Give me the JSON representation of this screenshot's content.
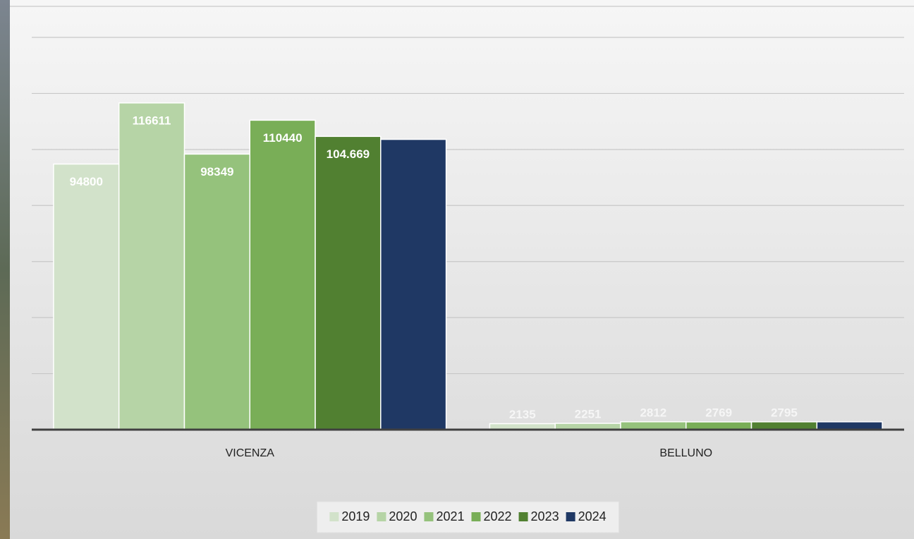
{
  "chart_data": {
    "type": "bar",
    "categories": [
      "VICENZA",
      "BELLUNO"
    ],
    "series": [
      {
        "name": "2019",
        "color": "#d2e2ca",
        "values": [
          94800,
          2135
        ]
      },
      {
        "name": "2020",
        "color": "#b6d4a6",
        "values": [
          116611,
          2251
        ]
      },
      {
        "name": "2021",
        "color": "#95c27c",
        "values": [
          98349,
          2812
        ]
      },
      {
        "name": "2022",
        "color": "#79ae57",
        "values": [
          110440,
          2769
        ]
      },
      {
        "name": "2023",
        "color": "#518031",
        "values": [
          104669,
          2795
        ],
        "value_labels": [
          "104.669",
          "2795"
        ]
      },
      {
        "name": "2024",
        "color": "#1f3864",
        "values": [
          103600,
          2800
        ],
        "value_labels": [
          null,
          null
        ]
      }
    ],
    "ylim": [
      0,
      140000
    ],
    "yticks": [
      0,
      20000,
      40000,
      60000,
      80000,
      100000,
      120000,
      140000
    ],
    "grid": true,
    "ytick_labels": false,
    "legend": "bottom"
  }
}
